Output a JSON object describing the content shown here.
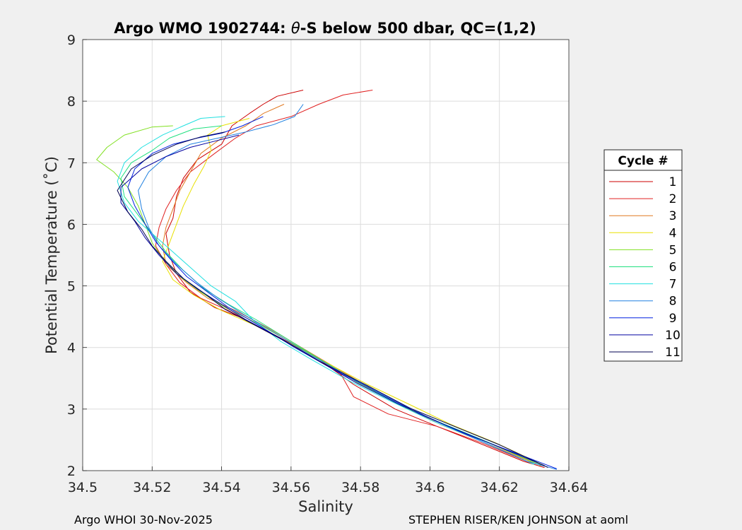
{
  "chart_data": {
    "type": "line",
    "title_prefix": "Argo WMO 1902744: ",
    "title_theta": "θ",
    "title_suffix": "-S below 500 dbar,  QC=(1,2)",
    "xlabel": "Salinity",
    "ylabel": "Potential Temperature (˚C)",
    "xlim": [
      34.5,
      34.64
    ],
    "ylim": [
      2,
      9
    ],
    "xticks": [
      "34.5",
      "34.52",
      "34.54",
      "34.56",
      "34.58",
      "34.6",
      "34.62",
      "34.64"
    ],
    "yticks": [
      "2",
      "3",
      "4",
      "5",
      "6",
      "7",
      "8",
      "9"
    ],
    "grid": true,
    "legend_title": "Cycle #",
    "legend_position": "right",
    "series": [
      {
        "name": "1",
        "color": "#cc0000",
        "points": [
          [
            34.5635,
            8.18
          ],
          [
            34.556,
            8.08
          ],
          [
            34.552,
            7.95
          ],
          [
            34.548,
            7.8
          ],
          [
            34.543,
            7.6
          ],
          [
            34.54,
            7.3
          ],
          [
            34.533,
            7.05
          ],
          [
            34.529,
            6.75
          ],
          [
            34.527,
            6.45
          ],
          [
            34.526,
            6.1
          ],
          [
            34.524,
            5.85
          ],
          [
            34.525,
            5.5
          ],
          [
            34.527,
            5.2
          ],
          [
            34.531,
            4.9
          ],
          [
            34.538,
            4.65
          ],
          [
            34.545,
            4.5
          ],
          [
            34.555,
            4.2
          ],
          [
            34.567,
            3.85
          ],
          [
            34.578,
            3.4
          ],
          [
            34.59,
            3.0
          ],
          [
            34.602,
            2.72
          ],
          [
            34.614,
            2.45
          ],
          [
            34.627,
            2.15
          ],
          [
            34.633,
            2.05
          ]
        ]
      },
      {
        "name": "2",
        "color": "#e02020",
        "points": [
          [
            34.5835,
            8.18
          ],
          [
            34.575,
            8.1
          ],
          [
            34.568,
            7.95
          ],
          [
            34.56,
            7.75
          ],
          [
            34.55,
            7.6
          ],
          [
            34.544,
            7.4
          ],
          [
            34.538,
            7.15
          ],
          [
            34.531,
            6.85
          ],
          [
            34.527,
            6.55
          ],
          [
            34.524,
            6.25
          ],
          [
            34.522,
            5.95
          ],
          [
            34.521,
            5.65
          ],
          [
            34.524,
            5.35
          ],
          [
            34.528,
            5.05
          ],
          [
            34.534,
            4.8
          ],
          [
            34.542,
            4.6
          ],
          [
            34.552,
            4.3
          ],
          [
            34.564,
            3.95
          ],
          [
            34.574,
            3.6
          ],
          [
            34.578,
            3.2
          ],
          [
            34.588,
            2.92
          ],
          [
            34.602,
            2.72
          ],
          [
            34.615,
            2.45
          ],
          [
            34.63,
            2.1
          ]
        ]
      },
      {
        "name": "3",
        "color": "#e07820",
        "points": [
          [
            34.558,
            7.95
          ],
          [
            34.552,
            7.8
          ],
          [
            34.547,
            7.6
          ],
          [
            34.54,
            7.4
          ],
          [
            34.534,
            7.15
          ],
          [
            34.531,
            6.85
          ],
          [
            34.528,
            6.55
          ],
          [
            34.526,
            6.25
          ],
          [
            34.524,
            5.95
          ],
          [
            34.523,
            5.65
          ],
          [
            34.524,
            5.35
          ],
          [
            34.53,
            5.05
          ],
          [
            34.536,
            4.8
          ],
          [
            34.544,
            4.6
          ],
          [
            34.554,
            4.3
          ],
          [
            34.566,
            3.9
          ],
          [
            34.578,
            3.5
          ],
          [
            34.59,
            3.1
          ],
          [
            34.603,
            2.75
          ],
          [
            34.616,
            2.45
          ],
          [
            34.631,
            2.1
          ]
        ]
      },
      {
        "name": "4",
        "color": "#e8e000",
        "points": [
          [
            34.548,
            7.72
          ],
          [
            34.54,
            7.6
          ],
          [
            34.536,
            7.45
          ],
          [
            34.537,
            7.2
          ],
          [
            34.535,
            6.95
          ],
          [
            34.532,
            6.65
          ],
          [
            34.529,
            6.3
          ],
          [
            34.527,
            6.0
          ],
          [
            34.525,
            5.7
          ],
          [
            34.523,
            5.4
          ],
          [
            34.526,
            5.1
          ],
          [
            34.532,
            4.85
          ],
          [
            34.54,
            4.6
          ],
          [
            34.55,
            4.35
          ],
          [
            34.562,
            4.0
          ],
          [
            34.572,
            3.7
          ],
          [
            34.582,
            3.4
          ],
          [
            34.595,
            3.05
          ],
          [
            34.606,
            2.75
          ],
          [
            34.619,
            2.45
          ],
          [
            34.633,
            2.08
          ]
        ]
      },
      {
        "name": "5",
        "color": "#80e020",
        "points": [
          [
            34.526,
            7.6
          ],
          [
            34.52,
            7.58
          ],
          [
            34.512,
            7.45
          ],
          [
            34.507,
            7.25
          ],
          [
            34.504,
            7.05
          ],
          [
            34.509,
            6.85
          ],
          [
            34.513,
            6.6
          ],
          [
            34.516,
            6.3
          ],
          [
            34.518,
            6.0
          ],
          [
            34.52,
            5.7
          ],
          [
            34.523,
            5.45
          ],
          [
            34.528,
            5.15
          ],
          [
            34.534,
            4.9
          ],
          [
            34.541,
            4.65
          ],
          [
            34.55,
            4.4
          ],
          [
            34.561,
            4.05
          ],
          [
            34.571,
            3.72
          ],
          [
            34.58,
            3.4
          ],
          [
            34.592,
            3.05
          ],
          [
            34.604,
            2.75
          ],
          [
            34.617,
            2.45
          ],
          [
            34.632,
            2.08
          ]
        ]
      },
      {
        "name": "6",
        "color": "#20e080",
        "points": [
          [
            34.54,
            7.6
          ],
          [
            34.532,
            7.55
          ],
          [
            34.525,
            7.4
          ],
          [
            34.52,
            7.2
          ],
          [
            34.514,
            7.0
          ],
          [
            34.511,
            6.75
          ],
          [
            34.512,
            6.45
          ],
          [
            34.516,
            6.15
          ],
          [
            34.52,
            5.85
          ],
          [
            34.524,
            5.55
          ],
          [
            34.529,
            5.25
          ],
          [
            34.535,
            4.95
          ],
          [
            34.542,
            4.7
          ],
          [
            34.55,
            4.45
          ],
          [
            34.56,
            4.1
          ],
          [
            34.57,
            3.75
          ],
          [
            34.58,
            3.42
          ],
          [
            34.591,
            3.08
          ],
          [
            34.603,
            2.78
          ],
          [
            34.616,
            2.48
          ],
          [
            34.632,
            2.1
          ]
        ]
      },
      {
        "name": "7",
        "color": "#20e0e0",
        "points": [
          [
            34.541,
            7.75
          ],
          [
            34.534,
            7.72
          ],
          [
            34.529,
            7.6
          ],
          [
            34.523,
            7.45
          ],
          [
            34.517,
            7.25
          ],
          [
            34.512,
            7.0
          ],
          [
            34.51,
            6.7
          ],
          [
            34.512,
            6.35
          ],
          [
            34.516,
            6.05
          ],
          [
            34.521,
            5.8
          ],
          [
            34.526,
            5.55
          ],
          [
            34.531,
            5.3
          ],
          [
            34.537,
            5.0
          ],
          [
            34.544,
            4.75
          ],
          [
            34.549,
            4.45
          ],
          [
            34.557,
            4.1
          ],
          [
            34.566,
            3.8
          ],
          [
            34.577,
            3.45
          ],
          [
            34.589,
            3.12
          ],
          [
            34.601,
            2.8
          ],
          [
            34.614,
            2.5
          ],
          [
            34.63,
            2.1
          ]
        ]
      },
      {
        "name": "8",
        "color": "#2080e0",
        "points": [
          [
            34.5635,
            7.95
          ],
          [
            34.561,
            7.75
          ],
          [
            34.555,
            7.62
          ],
          [
            34.547,
            7.5
          ],
          [
            34.539,
            7.4
          ],
          [
            34.531,
            7.3
          ],
          [
            34.524,
            7.1
          ],
          [
            34.519,
            6.85
          ],
          [
            34.516,
            6.55
          ],
          [
            34.517,
            6.25
          ],
          [
            34.519,
            5.95
          ],
          [
            34.522,
            5.65
          ],
          [
            34.527,
            5.35
          ],
          [
            34.533,
            5.05
          ],
          [
            34.539,
            4.8
          ],
          [
            34.546,
            4.55
          ],
          [
            34.555,
            4.25
          ],
          [
            34.565,
            3.9
          ],
          [
            34.576,
            3.55
          ],
          [
            34.588,
            3.2
          ],
          [
            34.6,
            2.85
          ],
          [
            34.613,
            2.52
          ],
          [
            34.628,
            2.15
          ],
          [
            34.6365,
            2.02
          ]
        ]
      },
      {
        "name": "9",
        "color": "#0020e0",
        "points": [
          [
            34.552,
            7.75
          ],
          [
            34.546,
            7.6
          ],
          [
            34.54,
            7.48
          ],
          [
            34.533,
            7.4
          ],
          [
            34.526,
            7.3
          ],
          [
            34.52,
            7.15
          ],
          [
            34.515,
            6.9
          ],
          [
            34.513,
            6.6
          ],
          [
            34.515,
            6.3
          ],
          [
            34.518,
            6.0
          ],
          [
            34.521,
            5.72
          ],
          [
            34.525,
            5.45
          ],
          [
            34.53,
            5.15
          ],
          [
            34.536,
            4.9
          ],
          [
            34.542,
            4.65
          ],
          [
            34.551,
            4.35
          ],
          [
            34.561,
            4.0
          ],
          [
            34.572,
            3.65
          ],
          [
            34.584,
            3.3
          ],
          [
            34.597,
            2.92
          ],
          [
            34.61,
            2.6
          ],
          [
            34.624,
            2.3
          ],
          [
            34.6365,
            2.03
          ]
        ]
      },
      {
        "name": "10",
        "color": "#0000a0",
        "points": [
          [
            34.545,
            7.45
          ],
          [
            34.538,
            7.35
          ],
          [
            34.531,
            7.25
          ],
          [
            34.524,
            7.1
          ],
          [
            34.517,
            6.9
          ],
          [
            34.511,
            6.6
          ],
          [
            34.511,
            6.35
          ],
          [
            34.515,
            6.05
          ],
          [
            34.518,
            5.78
          ],
          [
            34.522,
            5.5
          ],
          [
            34.527,
            5.2
          ],
          [
            34.533,
            4.95
          ],
          [
            34.54,
            4.7
          ],
          [
            34.547,
            4.45
          ],
          [
            34.557,
            4.15
          ],
          [
            34.568,
            3.78
          ],
          [
            34.579,
            3.42
          ],
          [
            34.591,
            3.08
          ],
          [
            34.604,
            2.75
          ],
          [
            34.617,
            2.45
          ],
          [
            34.633,
            2.08
          ]
        ]
      },
      {
        "name": "11",
        "color": "#000050",
        "points": [
          [
            34.541,
            7.5
          ],
          [
            34.534,
            7.42
          ],
          [
            34.527,
            7.3
          ],
          [
            34.52,
            7.12
          ],
          [
            34.514,
            6.9
          ],
          [
            34.51,
            6.55
          ],
          [
            34.513,
            6.2
          ],
          [
            34.517,
            5.92
          ],
          [
            34.52,
            5.65
          ],
          [
            34.524,
            5.4
          ],
          [
            34.529,
            5.12
          ],
          [
            34.535,
            4.88
          ],
          [
            34.541,
            4.62
          ],
          [
            34.549,
            4.38
          ],
          [
            34.559,
            4.08
          ],
          [
            34.57,
            3.72
          ],
          [
            34.582,
            3.38
          ],
          [
            34.594,
            3.02
          ],
          [
            34.607,
            2.72
          ],
          [
            34.62,
            2.42
          ],
          [
            34.634,
            2.05
          ]
        ]
      }
    ]
  },
  "footer": {
    "left": "Argo WHOI 30-Nov-2025",
    "right": "STEPHEN RISER/KEN JOHNSON at aoml"
  }
}
